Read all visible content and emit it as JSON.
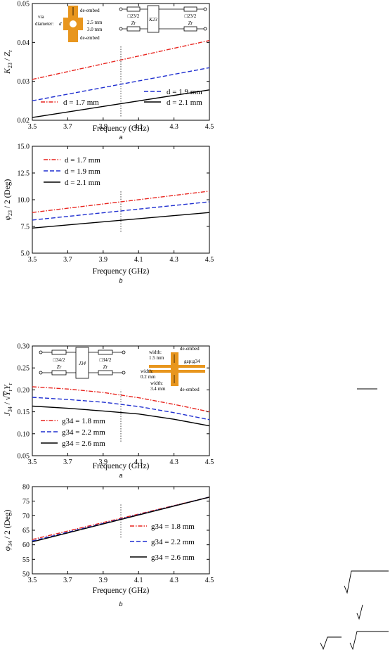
{
  "chart_data": [
    {
      "type": "line",
      "caption": "a",
      "xlabel": "Frequency (GHz)",
      "ylabel": "K23 / Zr",
      "xlim": [
        3.5,
        4.5
      ],
      "ylim": [
        0.02,
        0.05
      ],
      "xticks": [
        "3.5",
        "3.7",
        "3.9",
        "4.1",
        "4.3",
        "4.5"
      ],
      "yticks": [
        "0.02",
        "0.03",
        "0.04",
        "0.05"
      ],
      "x": [
        3.5,
        4.5
      ],
      "series": [
        {
          "name": "d = 1.7 mm",
          "color": "#e8241e",
          "dash": "dashdot",
          "values": [
            0.0305,
            0.0405
          ]
        },
        {
          "name": "d = 1.9 mm",
          "color": "#1f2fd0",
          "dash": "dash",
          "values": [
            0.025,
            0.0335
          ]
        },
        {
          "name": "d = 2.1 mm",
          "color": "#000000",
          "dash": "solid",
          "values": [
            0.0207,
            0.0278
          ]
        }
      ],
      "vline": {
        "x": 4.0,
        "y": [
          0.021,
          0.039
        ]
      },
      "inset": {
        "labels": [
          "de-embed",
          "via",
          "diameter:",
          "d",
          "2.5 mm",
          "3.0 mm",
          "de-embed"
        ],
        "circuit": [
          "□23/2",
          "□23/2",
          "Zr",
          "Zr",
          "K23"
        ]
      }
    },
    {
      "type": "line",
      "caption": "b",
      "xlabel": "Frequency (GHz)",
      "ylabel": "φ23 / 2 (Deg)",
      "xlim": [
        3.5,
        4.5
      ],
      "ylim": [
        5.0,
        15.0
      ],
      "xticks": [
        "3.5",
        "3.7",
        "3.9",
        "4.1",
        "4.3",
        "4.5"
      ],
      "yticks": [
        "5.0",
        "7.5",
        "10.0",
        "12.5",
        "15.0"
      ],
      "x": [
        3.5,
        4.5
      ],
      "series": [
        {
          "name": "d = 1.7 mm",
          "color": "#e8241e",
          "dash": "dashdot",
          "values": [
            8.8,
            10.8
          ]
        },
        {
          "name": "d = 1.9 mm",
          "color": "#1f2fd0",
          "dash": "dash",
          "values": [
            8.1,
            9.8
          ]
        },
        {
          "name": "d = 2.1 mm",
          "color": "#000000",
          "dash": "solid",
          "values": [
            7.35,
            8.8
          ]
        }
      ],
      "vline": {
        "x": 4.0,
        "y": [
          7.0,
          10.8
        ]
      }
    },
    {
      "type": "line",
      "caption": "a",
      "xlabel": "Frequency (GHz)",
      "ylabel": "J34 / √(YrYr)",
      "xlim": [
        3.5,
        4.5
      ],
      "ylim": [
        0.05,
        0.3
      ],
      "xticks": [
        "3.5",
        "3.7",
        "3.9",
        "4.1",
        "4.3",
        "4.5"
      ],
      "yticks": [
        "0.05",
        "0.10",
        "0.15",
        "0.20",
        "0.25",
        "0.30"
      ],
      "x": [
        3.5,
        3.7,
        3.9,
        4.1,
        4.3,
        4.5
      ],
      "series": [
        {
          "name": "g34 = 1.8 mm",
          "color": "#e8241e",
          "dash": "dashdot",
          "values": [
            0.207,
            0.202,
            0.194,
            0.182,
            0.167,
            0.15
          ]
        },
        {
          "name": "g34 = 2.2 mm",
          "color": "#1f2fd0",
          "dash": "dash",
          "values": [
            0.183,
            0.178,
            0.172,
            0.162,
            0.148,
            0.132
          ]
        },
        {
          "name": "g34 = 2.6 mm",
          "color": "#000000",
          "dash": "solid",
          "values": [
            0.163,
            0.158,
            0.152,
            0.145,
            0.133,
            0.118
          ]
        }
      ],
      "vline": {
        "x": 4.0,
        "y": [
          0.082,
          0.2
        ]
      },
      "inset": {
        "labels": [
          "width:",
          "1.5 mm",
          "de-embed",
          "gap:g34",
          "width:",
          "0.2 mm",
          "width:",
          "3.4 mm",
          "de-embed"
        ],
        "circuit": [
          "□34/2",
          "□34/2",
          "Zr",
          "Zr",
          "J34"
        ]
      }
    },
    {
      "type": "line",
      "caption": "b",
      "xlabel": "Frequency (GHz)",
      "ylabel": "φ34 / 2 (Deg)",
      "xlim": [
        3.5,
        4.5
      ],
      "ylim": [
        50,
        80
      ],
      "xticks": [
        "3.5",
        "3.7",
        "3.9",
        "4.1",
        "4.3",
        "4.5"
      ],
      "yticks": [
        "50",
        "55",
        "60",
        "65",
        "70",
        "75",
        "80"
      ],
      "x": [
        3.5,
        4.5
      ],
      "series": [
        {
          "name": "g34 = 1.8 mm",
          "color": "#e8241e",
          "dash": "dashdot",
          "values": [
            61.8,
            76.4
          ]
        },
        {
          "name": "g34 = 2.2 mm",
          "color": "#1f2fd0",
          "dash": "dash",
          "values": [
            61.3,
            76.4
          ]
        },
        {
          "name": "g34 = 2.6 mm",
          "color": "#000000",
          "dash": "solid",
          "values": [
            61.0,
            76.4
          ]
        }
      ],
      "vline": {
        "x": 4.0,
        "y": [
          62.5,
          74
        ]
      }
    }
  ]
}
